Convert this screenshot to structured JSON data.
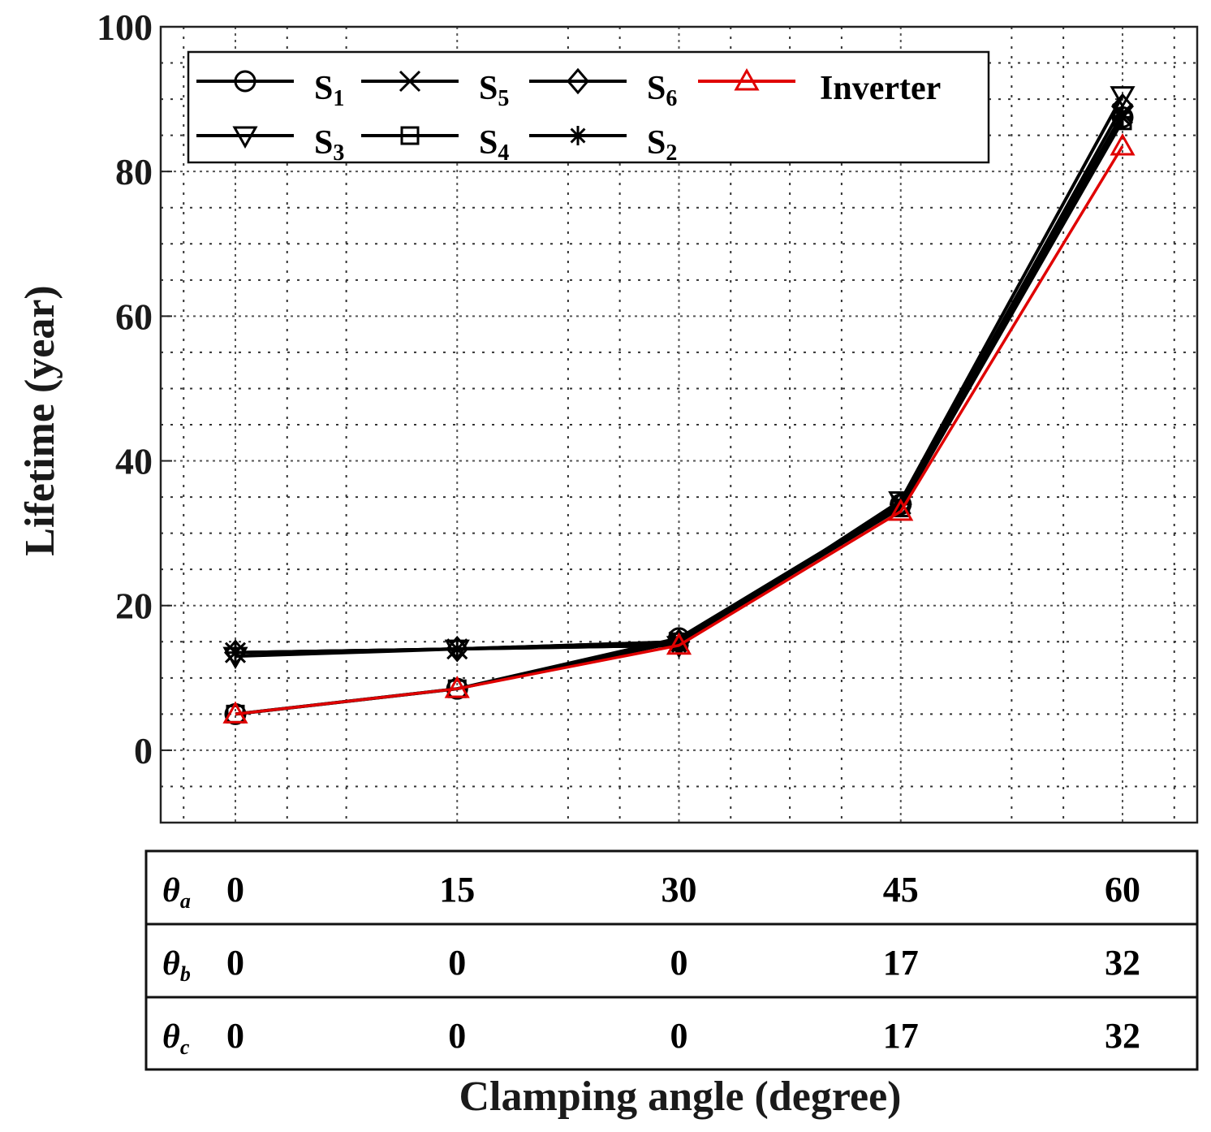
{
  "chart_data": {
    "type": "line",
    "xlabel": "Clamping angle (degree)",
    "ylabel": "Lifetime (year)",
    "x": [
      0,
      15,
      30,
      45,
      60
    ],
    "xlim": [
      -5,
      65
    ],
    "ylim": [
      -10,
      100
    ],
    "yticks": [
      0,
      20,
      40,
      60,
      80,
      100
    ],
    "grid": true,
    "legend_position": "top-left",
    "series": [
      {
        "name": "S1",
        "label_main": "S",
        "label_sub": "1",
        "marker": "circle",
        "color": "#000000",
        "values": [
          5,
          8.5,
          15.5,
          34,
          87.5
        ]
      },
      {
        "name": "S5",
        "label_main": "S",
        "label_sub": "5",
        "marker": "x",
        "color": "#000000",
        "values": [
          13.5,
          14,
          15,
          34,
          88
        ]
      },
      {
        "name": "S6",
        "label_main": "S",
        "label_sub": "6",
        "marker": "diamond",
        "color": "#000000",
        "values": [
          13.5,
          14,
          15,
          34,
          89
        ]
      },
      {
        "name": "Inverter",
        "label_main": "Inverter",
        "label_sub": "",
        "marker": "triangle-up",
        "color": "#e00000",
        "values": [
          5,
          8.5,
          14.5,
          33,
          83.5
        ]
      },
      {
        "name": "S3",
        "label_main": "S",
        "label_sub": "3",
        "marker": "triangle-down",
        "color": "#000000",
        "values": [
          13,
          14,
          14.5,
          34.5,
          90.5
        ]
      },
      {
        "name": "S4",
        "label_main": "S",
        "label_sub": "4",
        "marker": "square",
        "color": "#000000",
        "values": [
          5,
          8.5,
          15,
          33.5,
          87
        ]
      },
      {
        "name": "S2",
        "label_main": "S",
        "label_sub": "2",
        "marker": "star",
        "color": "#000000",
        "values": [
          13.5,
          14,
          14.5,
          34,
          87.5
        ]
      }
    ],
    "table": {
      "rows": [
        {
          "label_main": "θ",
          "label_sub": "a",
          "values": [
            "0",
            "15",
            "30",
            "45",
            "60"
          ]
        },
        {
          "label_main": "θ",
          "label_sub": "b",
          "values": [
            "0",
            "0",
            "0",
            "17",
            "32"
          ]
        },
        {
          "label_main": "θ",
          "label_sub": "c",
          "values": [
            "0",
            "0",
            "0",
            "17",
            "32"
          ]
        }
      ]
    }
  }
}
